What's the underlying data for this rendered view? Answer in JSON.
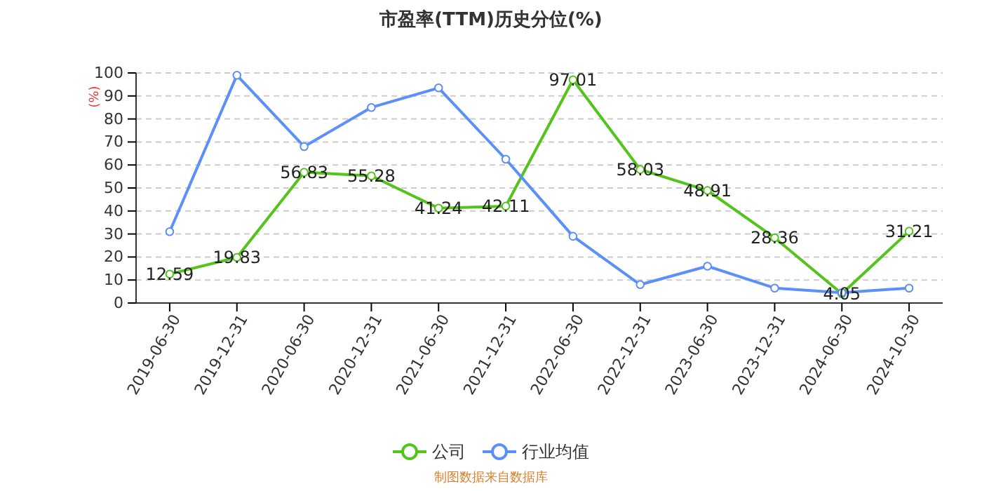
{
  "chart_data": {
    "type": "line",
    "title": "市盈率(TTM)历史分位(%)",
    "ylabel": "(%)",
    "categories": [
      "2019-06-30",
      "2019-12-31",
      "2020-06-30",
      "2020-12-31",
      "2021-06-30",
      "2021-12-31",
      "2022-06-30",
      "2022-12-31",
      "2023-06-30",
      "2023-12-31",
      "2024-06-30",
      "2024-10-30"
    ],
    "series": [
      {
        "name": "公司",
        "color": "#52c41a",
        "values": [
          12.59,
          19.83,
          56.83,
          55.28,
          41.24,
          42.11,
          97.01,
          58.03,
          48.91,
          28.36,
          4.05,
          31.21
        ],
        "value_labels": [
          "12.59",
          "19.83",
          "56.83",
          "55.28",
          "41.24",
          "42.11",
          "97.01",
          "58.03",
          "48.91",
          "28.36",
          "4.05",
          "31.21"
        ]
      },
      {
        "name": "行业均值",
        "color": "#5b8ff9",
        "values": [
          31,
          99,
          68,
          85,
          93.5,
          62.5,
          29,
          8,
          16,
          6.5,
          4.5,
          6.5
        ]
      }
    ],
    "ylim": [
      0,
      100
    ],
    "yticks": [
      0,
      10,
      20,
      30,
      40,
      50,
      60,
      70,
      80,
      90,
      100
    ],
    "grid": "y",
    "legend": "bottom",
    "marker": "circle",
    "line_style": "solid",
    "annotations": [
      "制图数据来自数据库"
    ]
  }
}
